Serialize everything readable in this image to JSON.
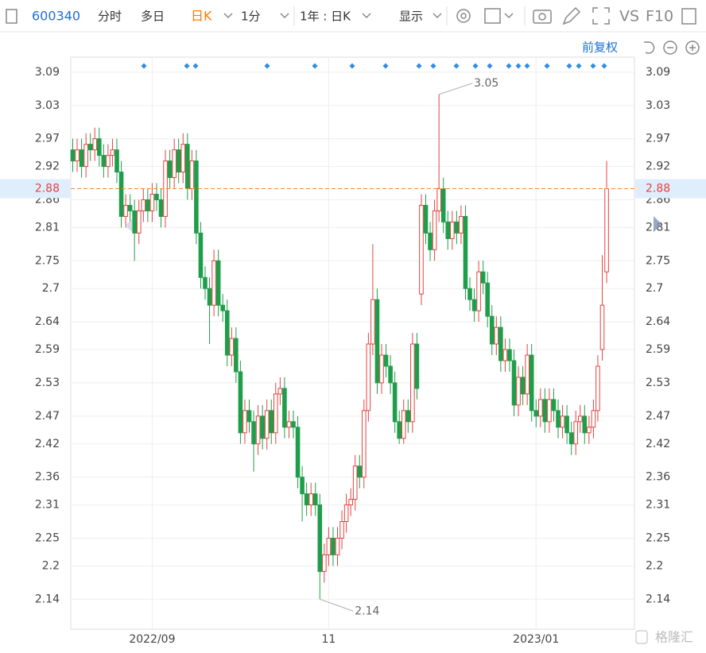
{
  "toolbar": {
    "code": "600340",
    "tabs": [
      "分时",
      "多日",
      "日K",
      "1分",
      "1年 : 日K",
      "显示",
      "VS",
      "F10"
    ],
    "adjust": "前复权"
  },
  "watermark": "格隆汇",
  "chart_data": {
    "type": "candlestick",
    "categories": [
      null,
      null,
      null,
      null,
      null,
      null,
      null,
      null,
      null,
      null,
      null,
      null,
      null,
      null,
      null,
      null,
      null,
      null,
      "2022/09",
      null,
      null,
      null,
      null,
      null,
      null,
      null,
      null,
      null,
      null,
      null,
      null,
      null,
      null,
      null,
      null,
      null,
      null,
      null,
      null,
      null,
      null,
      null,
      null,
      null,
      null,
      null,
      null,
      null,
      null,
      null,
      null,
      null,
      null,
      null,
      null,
      null,
      null,
      null,
      "11",
      null,
      null,
      null,
      null,
      null,
      null,
      null,
      null,
      null,
      null,
      null,
      null,
      null,
      null,
      null,
      null,
      null,
      null,
      null,
      null,
      null,
      null,
      null,
      null,
      null,
      null,
      null,
      null,
      null,
      null,
      null,
      null,
      null,
      null,
      null,
      null,
      null,
      null,
      null,
      null,
      null,
      null,
      null,
      null,
      null,
      null,
      "2023/01",
      null,
      null,
      null,
      null,
      null,
      null,
      null,
      null,
      null,
      null,
      null,
      null,
      null,
      null,
      null,
      null
    ],
    "open": [
      2.95,
      2.93,
      2.95,
      2.92,
      2.96,
      2.95,
      2.97,
      2.94,
      2.92,
      2.94,
      2.95,
      2.91,
      2.83,
      2.85,
      2.84,
      2.8,
      2.84,
      2.86,
      2.84,
      2.87,
      2.86,
      2.83,
      2.93,
      2.9,
      2.95,
      2.91,
      2.96,
      2.88,
      2.93,
      2.8,
      2.72,
      2.7,
      2.67,
      2.75,
      2.67,
      2.66,
      2.58,
      2.61,
      2.55,
      2.44,
      2.48,
      2.46,
      2.42,
      2.47,
      2.43,
      2.48,
      2.44,
      2.51,
      2.52,
      2.45,
      2.46,
      2.45,
      2.36,
      2.33,
      2.31,
      2.33,
      2.31,
      2.19,
      2.22,
      2.25,
      2.22,
      2.25,
      2.28,
      2.31,
      2.32,
      2.38,
      2.36,
      2.48,
      2.6,
      2.68,
      2.53,
      2.58,
      2.56,
      2.53,
      2.46,
      2.43,
      2.48,
      2.46,
      2.6,
      2.69,
      2.85,
      2.8,
      2.77,
      2.84,
      2.88,
      2.82,
      2.79,
      2.82,
      2.8,
      2.83,
      2.7,
      2.68,
      2.66,
      2.73,
      2.71,
      2.65,
      2.6,
      2.63,
      2.57,
      2.59,
      2.57,
      2.49,
      2.54,
      2.51,
      2.58,
      2.48,
      2.47,
      2.5,
      2.46,
      2.5,
      2.48,
      2.45,
      2.47,
      2.44,
      2.42,
      2.46,
      2.47,
      2.44,
      2.45,
      2.48,
      2.59,
      2.73
    ],
    "high": [
      2.97,
      2.97,
      2.97,
      2.98,
      2.98,
      2.99,
      2.99,
      2.96,
      2.96,
      2.97,
      2.97,
      2.93,
      2.87,
      2.87,
      2.86,
      2.86,
      2.88,
      2.88,
      2.89,
      2.89,
      2.88,
      2.95,
      2.95,
      2.97,
      2.97,
      2.98,
      2.98,
      2.95,
      2.95,
      2.82,
      2.74,
      2.72,
      2.77,
      2.77,
      2.69,
      2.68,
      2.63,
      2.63,
      2.57,
      2.5,
      2.5,
      2.48,
      2.49,
      2.49,
      2.5,
      2.5,
      2.53,
      2.54,
      2.54,
      2.48,
      2.48,
      2.47,
      2.38,
      2.35,
      2.35,
      2.35,
      2.33,
      2.24,
      2.27,
      2.27,
      2.27,
      2.3,
      2.33,
      2.34,
      2.4,
      2.4,
      2.5,
      2.62,
      2.78,
      2.7,
      2.6,
      2.6,
      2.58,
      2.55,
      2.48,
      2.5,
      2.5,
      2.62,
      2.62,
      2.87,
      2.87,
      2.82,
      2.86,
      3.05,
      2.9,
      2.84,
      2.84,
      2.84,
      2.85,
      2.85,
      2.72,
      2.7,
      2.75,
      2.75,
      2.73,
      2.67,
      2.65,
      2.65,
      2.61,
      2.61,
      2.59,
      2.56,
      2.56,
      2.6,
      2.6,
      2.5,
      2.52,
      2.52,
      2.52,
      2.52,
      2.5,
      2.49,
      2.49,
      2.46,
      2.48,
      2.49,
      2.49,
      2.47,
      2.5,
      2.58,
      2.76,
      2.93
    ],
    "low": [
      2.91,
      2.91,
      2.9,
      2.9,
      2.93,
      2.93,
      2.92,
      2.9,
      2.9,
      2.92,
      2.89,
      2.81,
      2.81,
      2.82,
      2.75,
      2.78,
      2.82,
      2.82,
      2.82,
      2.84,
      2.81,
      2.81,
      2.88,
      2.88,
      2.89,
      2.89,
      2.86,
      2.86,
      2.78,
      2.7,
      2.68,
      2.6,
      2.65,
      2.65,
      2.64,
      2.56,
      2.56,
      2.53,
      2.42,
      2.42,
      2.44,
      2.37,
      2.4,
      2.41,
      2.41,
      2.42,
      2.42,
      2.49,
      2.43,
      2.43,
      2.43,
      2.34,
      2.28,
      2.29,
      2.29,
      2.29,
      2.14,
      2.17,
      2.2,
      2.2,
      2.2,
      2.23,
      2.26,
      2.29,
      2.3,
      2.34,
      2.34,
      2.46,
      2.58,
      2.51,
      2.51,
      2.54,
      2.51,
      2.44,
      2.42,
      2.42,
      2.44,
      2.44,
      2.5,
      2.67,
      2.78,
      2.75,
      2.75,
      2.82,
      2.8,
      2.77,
      2.77,
      2.78,
      2.78,
      2.68,
      2.66,
      2.64,
      2.64,
      2.69,
      2.63,
      2.58,
      2.58,
      2.55,
      2.55,
      2.55,
      2.47,
      2.47,
      2.49,
      2.49,
      2.46,
      2.45,
      2.45,
      2.44,
      2.44,
      2.46,
      2.43,
      2.43,
      2.42,
      2.4,
      2.4,
      2.44,
      2.42,
      2.42,
      2.43,
      2.46,
      2.57,
      2.71
    ],
    "close": [
      2.93,
      2.95,
      2.92,
      2.96,
      2.95,
      2.97,
      2.94,
      2.92,
      2.94,
      2.95,
      2.91,
      2.83,
      2.85,
      2.84,
      2.8,
      2.84,
      2.86,
      2.84,
      2.87,
      2.86,
      2.83,
      2.93,
      2.9,
      2.95,
      2.91,
      2.96,
      2.88,
      2.93,
      2.8,
      2.72,
      2.7,
      2.67,
      2.75,
      2.67,
      2.66,
      2.58,
      2.61,
      2.55,
      2.44,
      2.48,
      2.46,
      2.42,
      2.47,
      2.43,
      2.48,
      2.44,
      2.51,
      2.52,
      2.45,
      2.46,
      2.45,
      2.36,
      2.33,
      2.31,
      2.33,
      2.31,
      2.19,
      2.22,
      2.25,
      2.22,
      2.25,
      2.28,
      2.31,
      2.32,
      2.38,
      2.36,
      2.48,
      2.6,
      2.68,
      2.53,
      2.58,
      2.56,
      2.53,
      2.46,
      2.43,
      2.48,
      2.46,
      2.6,
      2.52,
      2.85,
      2.8,
      2.77,
      2.84,
      2.88,
      2.82,
      2.79,
      2.82,
      2.8,
      2.83,
      2.7,
      2.68,
      2.66,
      2.73,
      2.71,
      2.65,
      2.6,
      2.63,
      2.57,
      2.59,
      2.57,
      2.49,
      2.54,
      2.51,
      2.58,
      2.48,
      2.47,
      2.5,
      2.46,
      2.5,
      2.48,
      2.45,
      2.47,
      2.44,
      2.42,
      2.46,
      2.47,
      2.44,
      2.45,
      2.48,
      2.56,
      2.67,
      2.88
    ],
    "ylim": [
      2.086,
      3.117
    ],
    "yticks": [
      2.14,
      2.2,
      2.25,
      2.31,
      2.36,
      2.42,
      2.47,
      2.53,
      2.59,
      2.64,
      2.7,
      2.75,
      2.81,
      2.86,
      2.92,
      2.97,
      3.03,
      3.09
    ],
    "up_color": "#e5433f",
    "down_color": "#1e9e4a",
    "grid": true,
    "last_price_line": true
  }
}
